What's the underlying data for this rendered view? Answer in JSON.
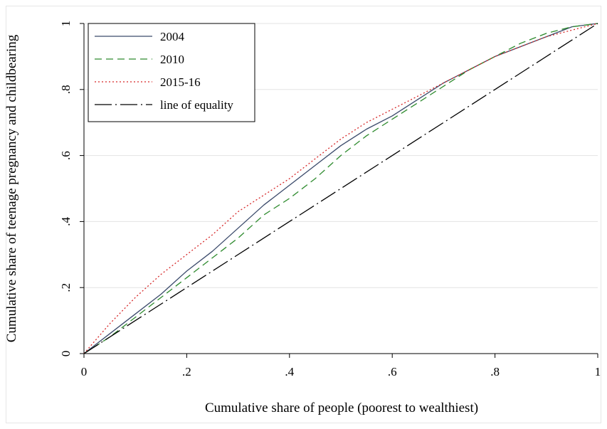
{
  "chart_data": {
    "type": "line",
    "title": "",
    "xlabel": "Cumulative share of people (poorest to wealthiest)",
    "ylabel": "Cumulative share of teenage pregnancy and childbearing",
    "xlim": [
      0,
      1
    ],
    "ylim": [
      0,
      1
    ],
    "x_ticks": [
      {
        "value": 0,
        "label": "0"
      },
      {
        "value": 0.2,
        "label": ".2"
      },
      {
        "value": 0.4,
        "label": ".4"
      },
      {
        "value": 0.6,
        "label": ".6"
      },
      {
        "value": 0.8,
        "label": ".8"
      },
      {
        "value": 1,
        "label": "1"
      }
    ],
    "y_ticks": [
      {
        "value": 0,
        "label": "0"
      },
      {
        "value": 0.2,
        "label": ".2"
      },
      {
        "value": 0.4,
        "label": ".4"
      },
      {
        "value": 0.6,
        "label": ".6"
      },
      {
        "value": 0.8,
        "label": ".8"
      },
      {
        "value": 1,
        "label": "1"
      }
    ],
    "grid": "horizontal",
    "legend_position": "top-left",
    "series": [
      {
        "name": "2004",
        "color": "#3b4a6b",
        "style": "solid",
        "x": [
          0,
          0.05,
          0.1,
          0.15,
          0.2,
          0.25,
          0.3,
          0.35,
          0.4,
          0.45,
          0.5,
          0.55,
          0.6,
          0.65,
          0.7,
          0.75,
          0.8,
          0.85,
          0.9,
          0.95,
          1
        ],
        "y": [
          0,
          0.06,
          0.12,
          0.18,
          0.25,
          0.31,
          0.38,
          0.45,
          0.51,
          0.57,
          0.63,
          0.68,
          0.72,
          0.77,
          0.82,
          0.86,
          0.9,
          0.93,
          0.96,
          0.99,
          1
        ]
      },
      {
        "name": "2010",
        "color": "#2e8b2e",
        "style": "dashed",
        "x": [
          0,
          0.05,
          0.1,
          0.15,
          0.2,
          0.25,
          0.3,
          0.35,
          0.4,
          0.45,
          0.5,
          0.55,
          0.6,
          0.65,
          0.7,
          0.75,
          0.8,
          0.85,
          0.9,
          0.95,
          1
        ],
        "y": [
          0,
          0.05,
          0.11,
          0.17,
          0.23,
          0.29,
          0.35,
          0.42,
          0.47,
          0.53,
          0.6,
          0.66,
          0.71,
          0.76,
          0.81,
          0.86,
          0.9,
          0.94,
          0.97,
          0.99,
          1
        ]
      },
      {
        "name": "2015-16",
        "color": "#d62728",
        "style": "dotted",
        "x": [
          0,
          0.05,
          0.1,
          0.15,
          0.2,
          0.25,
          0.3,
          0.35,
          0.4,
          0.45,
          0.5,
          0.55,
          0.6,
          0.65,
          0.7,
          0.75,
          0.8,
          0.85,
          0.9,
          0.95,
          1
        ],
        "y": [
          0,
          0.09,
          0.17,
          0.24,
          0.3,
          0.36,
          0.43,
          0.48,
          0.53,
          0.59,
          0.65,
          0.7,
          0.74,
          0.78,
          0.82,
          0.86,
          0.9,
          0.93,
          0.96,
          0.98,
          1
        ]
      },
      {
        "name": "line of equality",
        "color": "#000000",
        "style": "dashdot",
        "x": [
          0,
          1
        ],
        "y": [
          0,
          1
        ]
      }
    ]
  }
}
